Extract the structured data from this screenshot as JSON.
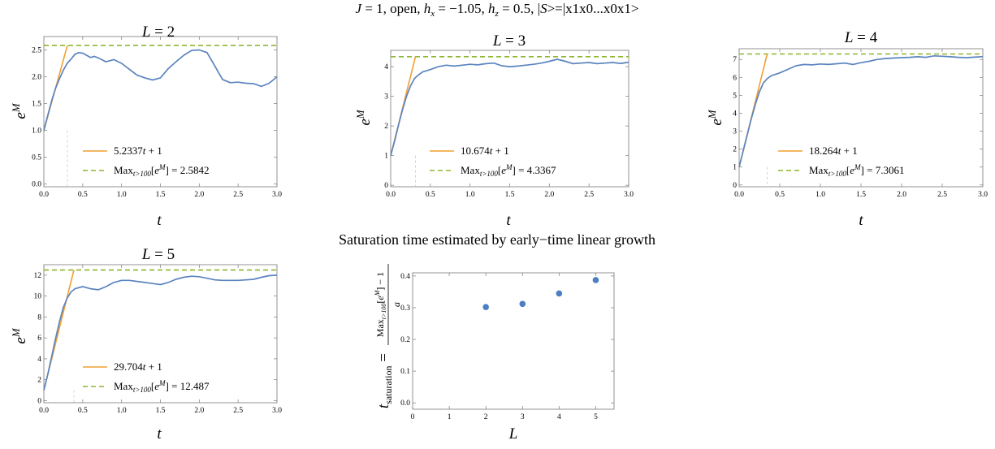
{
  "title": {
    "j": "J",
    "eq1": " = 1,  open,  ",
    "hx": "h",
    "hx_sub": "x",
    "eq2": " = −1.05,  ",
    "hz": "h",
    "hz_sub": "z",
    "eq3": " = 0.5,  |",
    "s": "S",
    "state": ">=|x1x0...x0x1>"
  },
  "colors": {
    "curve": "#5b84bf",
    "linear": "#f0a030",
    "max": "#8db62e",
    "marker": "#c8c8c8",
    "frame": "#888888",
    "points": "#4b7ec2"
  },
  "chart_data": [
    {
      "type": "line",
      "panel_title": "L = 2",
      "xlabel": "t",
      "ylabel": "e^M",
      "xlim": [
        0,
        3
      ],
      "ylim": [
        -0.05,
        2.75
      ],
      "xticks": [
        0,
        0.5,
        1,
        1.5,
        2,
        2.5,
        3
      ],
      "xtick_labels": [
        "0.0",
        "0.5",
        "1.0",
        "1.5",
        "2.0",
        "2.5",
        "3.0"
      ],
      "yticks": [
        0,
        0.5,
        1,
        1.5,
        2,
        2.5
      ],
      "ytick_labels": [
        "0.0",
        "0.5",
        "1.0",
        "1.5",
        "2.0",
        "2.5"
      ],
      "curve": {
        "x": [
          0,
          0.05,
          0.1,
          0.15,
          0.2,
          0.25,
          0.3,
          0.35,
          0.4,
          0.45,
          0.5,
          0.55,
          0.6,
          0.65,
          0.7,
          0.8,
          0.9,
          1.0,
          1.1,
          1.2,
          1.3,
          1.4,
          1.5,
          1.6,
          1.7,
          1.8,
          1.9,
          2.0,
          2.1,
          2.2,
          2.3,
          2.4,
          2.5,
          2.6,
          2.7,
          2.8,
          2.9,
          3.0
        ],
        "y": [
          1.0,
          1.28,
          1.55,
          1.78,
          1.96,
          2.12,
          2.25,
          2.33,
          2.42,
          2.45,
          2.44,
          2.4,
          2.36,
          2.38,
          2.35,
          2.28,
          2.32,
          2.25,
          2.14,
          2.03,
          1.98,
          1.94,
          1.98,
          2.15,
          2.28,
          2.4,
          2.49,
          2.5,
          2.45,
          2.2,
          1.95,
          1.89,
          1.9,
          1.88,
          1.87,
          1.82,
          1.88,
          2.0
        ]
      },
      "linear": {
        "label": "5.2337t + 1",
        "slope": 5.2337,
        "intercept": 1
      },
      "max": {
        "label": "Max",
        "sub": "t>100",
        "eq": " = 2.5842",
        "value": 2.5842
      },
      "marker_t": 0.302
    },
    {
      "type": "line",
      "panel_title": "L = 3",
      "xlabel": "t",
      "ylabel": "e^M",
      "xlim": [
        0,
        3
      ],
      "ylim": [
        -0.05,
        4.55
      ],
      "xticks": [
        0,
        0.5,
        1,
        1.5,
        2,
        2.5,
        3
      ],
      "xtick_labels": [
        "0.0",
        "0.5",
        "1.0",
        "1.5",
        "2.0",
        "2.5",
        "3.0"
      ],
      "yticks": [
        0,
        1,
        2,
        3,
        4
      ],
      "ytick_labels": [
        "0",
        "1",
        "2",
        "3",
        "4"
      ],
      "curve": {
        "x": [
          0,
          0.05,
          0.1,
          0.15,
          0.2,
          0.25,
          0.3,
          0.35,
          0.4,
          0.5,
          0.6,
          0.7,
          0.8,
          0.9,
          1.0,
          1.1,
          1.2,
          1.3,
          1.4,
          1.5,
          1.6,
          1.7,
          1.8,
          1.9,
          2.0,
          2.1,
          2.2,
          2.3,
          2.4,
          2.5,
          2.6,
          2.7,
          2.8,
          2.9,
          3.0
        ],
        "y": [
          1.0,
          1.5,
          2.05,
          2.55,
          3.0,
          3.35,
          3.6,
          3.72,
          3.82,
          3.9,
          4.0,
          4.05,
          4.02,
          4.05,
          4.08,
          4.06,
          4.1,
          4.12,
          4.03,
          4.0,
          4.02,
          4.05,
          4.08,
          4.12,
          4.18,
          4.25,
          4.18,
          4.1,
          4.12,
          4.14,
          4.1,
          4.12,
          4.14,
          4.11,
          4.15
        ]
      },
      "linear": {
        "label": "10.674t + 1",
        "slope": 10.674,
        "intercept": 1
      },
      "max": {
        "label": "Max",
        "sub": "t>100",
        "eq": " = 4.3367",
        "value": 4.3367
      },
      "marker_t": 0.312
    },
    {
      "type": "line",
      "panel_title": "L = 4",
      "xlabel": "t",
      "ylabel": "e^M",
      "xlim": [
        0,
        3
      ],
      "ylim": [
        -0.1,
        7.6
      ],
      "xticks": [
        0,
        0.5,
        1,
        1.5,
        2,
        2.5,
        3
      ],
      "xtick_labels": [
        "0.0",
        "0.5",
        "1.0",
        "1.5",
        "2.0",
        "2.5",
        "3.0"
      ],
      "yticks": [
        0,
        1,
        2,
        3,
        4,
        5,
        6,
        7
      ],
      "ytick_labels": [
        "0",
        "1",
        "2",
        "3",
        "4",
        "5",
        "6",
        "7"
      ],
      "curve": {
        "x": [
          0,
          0.05,
          0.1,
          0.15,
          0.2,
          0.25,
          0.3,
          0.35,
          0.4,
          0.5,
          0.6,
          0.7,
          0.8,
          0.9,
          1.0,
          1.1,
          1.2,
          1.3,
          1.4,
          1.5,
          1.6,
          1.7,
          1.8,
          1.9,
          2.0,
          2.1,
          2.2,
          2.3,
          2.4,
          2.5,
          2.6,
          2.7,
          2.8,
          2.9,
          3.0
        ],
        "y": [
          1.0,
          1.9,
          2.8,
          3.7,
          4.5,
          5.2,
          5.7,
          5.95,
          6.1,
          6.25,
          6.45,
          6.65,
          6.72,
          6.7,
          6.75,
          6.72,
          6.76,
          6.8,
          6.72,
          6.82,
          6.9,
          7.0,
          7.05,
          7.08,
          7.1,
          7.12,
          7.15,
          7.12,
          7.2,
          7.18,
          7.15,
          7.12,
          7.1,
          7.13,
          7.16
        ]
      },
      "linear": {
        "label": "18.264t + 1",
        "slope": 18.264,
        "intercept": 1
      },
      "max": {
        "label": "Max",
        "sub": "t>100",
        "eq": " = 7.3061",
        "value": 7.3061
      },
      "marker_t": 0.345
    },
    {
      "type": "line",
      "panel_title": "L = 5",
      "xlabel": "t",
      "ylabel": "e^M",
      "xlim": [
        0,
        3
      ],
      "ylim": [
        -0.2,
        13.0
      ],
      "xticks": [
        0,
        0.5,
        1,
        1.5,
        2,
        2.5,
        3
      ],
      "xtick_labels": [
        "0.0",
        "0.5",
        "1.0",
        "1.5",
        "2.0",
        "2.5",
        "3.0"
      ],
      "yticks": [
        0,
        2,
        4,
        6,
        8,
        10,
        12
      ],
      "ytick_labels": [
        "0",
        "2",
        "4",
        "6",
        "8",
        "10",
        "12"
      ],
      "curve": {
        "x": [
          0,
          0.05,
          0.1,
          0.15,
          0.2,
          0.25,
          0.3,
          0.35,
          0.4,
          0.5,
          0.6,
          0.7,
          0.8,
          0.9,
          1.0,
          1.1,
          1.2,
          1.3,
          1.4,
          1.5,
          1.6,
          1.7,
          1.8,
          1.9,
          2.0,
          2.1,
          2.2,
          2.3,
          2.4,
          2.5,
          2.6,
          2.7,
          2.8,
          2.9,
          3.0
        ],
        "y": [
          1.0,
          2.5,
          4.2,
          5.9,
          7.5,
          8.9,
          9.8,
          10.4,
          10.7,
          10.9,
          10.7,
          10.6,
          10.9,
          11.3,
          11.5,
          11.5,
          11.4,
          11.3,
          11.2,
          11.1,
          11.3,
          11.6,
          11.8,
          11.9,
          11.85,
          11.7,
          11.55,
          11.5,
          11.5,
          11.5,
          11.55,
          11.6,
          11.8,
          11.95,
          12.0
        ]
      },
      "linear": {
        "label": "29.704t + 1",
        "slope": 29.704,
        "intercept": 1
      },
      "max": {
        "label": "Max",
        "sub": "t>100",
        "eq": " = 12.487",
        "value": 12.487
      },
      "marker_t": 0.387
    },
    {
      "type": "scatter",
      "panel_title": "Saturation time estimated by early−time linear growth",
      "xlabel": "L",
      "ylabel": "t_saturation = (Max_{t>100}[e^M] − 1) / a",
      "xlim": [
        0,
        5.5
      ],
      "ylim": [
        -0.02,
        0.41
      ],
      "xticks": [
        0,
        1,
        2,
        3,
        4,
        5
      ],
      "xtick_labels": [
        "0",
        "1",
        "2",
        "3",
        "4",
        "5"
      ],
      "yticks": [
        0,
        0.1,
        0.2,
        0.3,
        0.4
      ],
      "ytick_labels": [
        "0.0",
        "0.1",
        "0.2",
        "0.3",
        "0.4"
      ],
      "x": [
        2,
        3,
        4,
        5
      ],
      "y": [
        0.302,
        0.312,
        0.345,
        0.387
      ]
    }
  ]
}
